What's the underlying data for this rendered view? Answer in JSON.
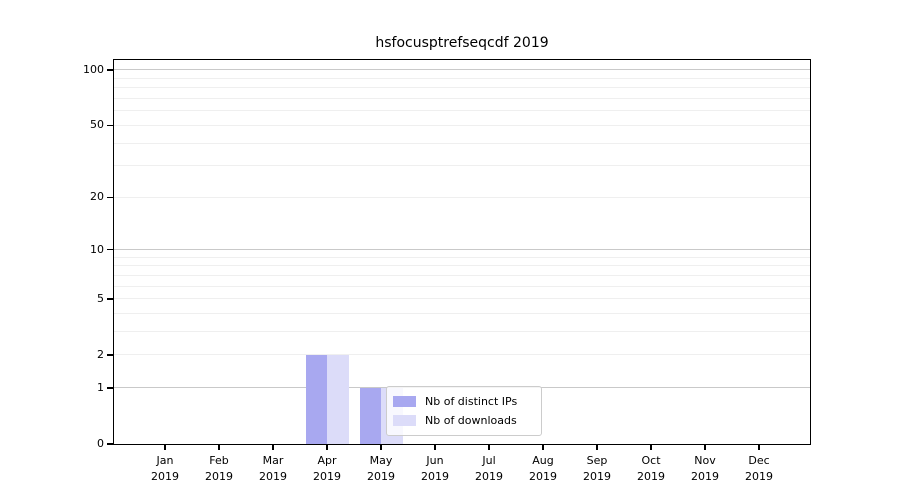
{
  "chart_data": {
    "type": "bar",
    "title": "hsfocusptrefseqcdf 2019",
    "categories": [
      "Jan",
      "Feb",
      "Mar",
      "Apr",
      "May",
      "Jun",
      "Jul",
      "Aug",
      "Sep",
      "Oct",
      "Nov",
      "Dec"
    ],
    "xtick_year": "2019",
    "series": [
      {
        "name": "Nb of distinct IPs",
        "color": "#a8a8f0",
        "values": [
          0,
          0,
          0,
          2,
          1,
          0,
          0,
          0,
          0,
          0,
          0,
          0
        ]
      },
      {
        "name": "Nb of downloads",
        "color": "#dcdcf9",
        "values": [
          0,
          0,
          0,
          2,
          1,
          0,
          0,
          0,
          0,
          0,
          0,
          0
        ]
      }
    ],
    "yscale": "log1p",
    "ylim": [
      0,
      113
    ],
    "yticks": [
      0,
      1,
      2,
      5,
      10,
      20,
      50,
      100
    ],
    "major_gridlines": [
      1,
      10,
      100
    ],
    "minor_gridlines": [
      2,
      3,
      4,
      5,
      6,
      7,
      8,
      9,
      20,
      30,
      40,
      50,
      60,
      70,
      80,
      90
    ],
    "grid": true,
    "xlabel": "",
    "ylabel": "",
    "legend_position": "lower center-right, inside plot"
  },
  "colors": {
    "major_grid": "#c9c9c9",
    "minor_grid": "#efefef",
    "spine": "#000000",
    "background": "#ffffff",
    "bar_ips": "#a8a8f0",
    "bar_downloads": "#dcdcf9"
  }
}
